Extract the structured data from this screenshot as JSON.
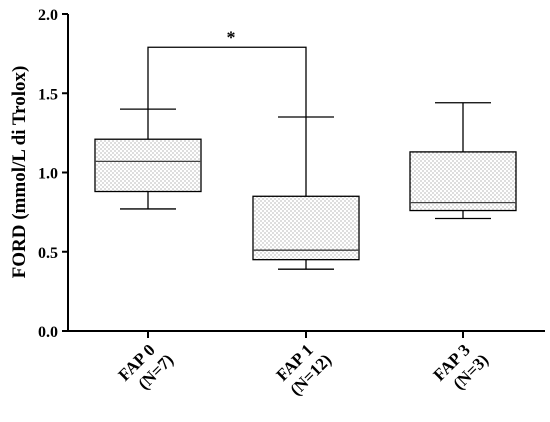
{
  "chart_data": {
    "type": "box",
    "ylabel": "FORD (mmol/L di Trolox)",
    "ylim": [
      0,
      2.0
    ],
    "yticks": [
      "0.0",
      "0.5",
      "1.0",
      "1.5",
      "2.0"
    ],
    "categories": [
      {
        "line1": "FAP 0",
        "line2": "(N=7)"
      },
      {
        "line1": "FAP 1",
        "line2": "(N=12)"
      },
      {
        "line1": "FAP 3",
        "line2": "(N=3)"
      }
    ],
    "boxes": [
      {
        "min": 0.77,
        "q1": 0.88,
        "median": 1.07,
        "q3": 1.21,
        "max": 1.4
      },
      {
        "min": 0.39,
        "q1": 0.45,
        "median": 0.51,
        "q3": 0.85,
        "max": 1.35
      },
      {
        "min": 0.71,
        "q1": 0.76,
        "median": 0.81,
        "q3": 1.13,
        "max": 1.44
      }
    ],
    "significance": {
      "between": [
        0,
        1
      ],
      "label": "*",
      "y": 1.79
    },
    "grid": false,
    "legend": "none"
  }
}
